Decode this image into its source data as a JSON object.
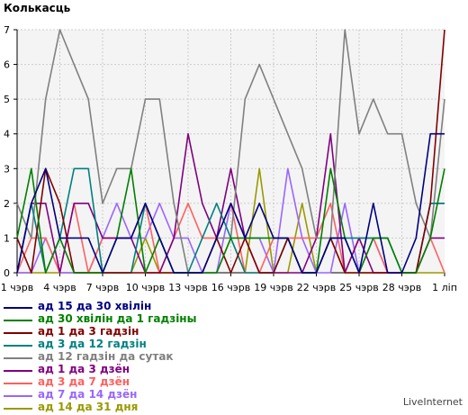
{
  "brand": "LiveInternet",
  "chart_data": {
    "type": "line",
    "title": "Колькасць",
    "xlabel": "",
    "ylabel": "",
    "ylim": [
      0,
      7
    ],
    "yticks": [
      "0",
      "1",
      "2",
      "3",
      "4",
      "5",
      "6",
      "7"
    ],
    "grid": true,
    "legend_position": "bottom",
    "x_tick_labels": [
      "1 чэрв",
      "4 чэрв",
      "7 чэрв",
      "10 чэрв",
      "13 чэрв",
      "16 чэрв",
      "19 чэрв",
      "22 чэрв",
      "25 чэрв",
      "28 чэрв",
      "1 ліп"
    ],
    "x_tick_positions": [
      0,
      3,
      6,
      9,
      12,
      15,
      18,
      21,
      24,
      27,
      30
    ],
    "x_count": 31,
    "series": [
      {
        "name": "ад 15 да 30 хвілін",
        "color": "#000080",
        "values": [
          0,
          2,
          3,
          1,
          1,
          1,
          0,
          1,
          1,
          2,
          1,
          0,
          0,
          0,
          1,
          2,
          1,
          2,
          1,
          1,
          0,
          0,
          1,
          1,
          0,
          2,
          0,
          0,
          1,
          4,
          4
        ]
      },
      {
        "name": "ад 30 хвілін да 1 гадзіны",
        "color": "#008000",
        "values": [
          1,
          3,
          0,
          1,
          0,
          0,
          0,
          1,
          3,
          0,
          1,
          0,
          0,
          0,
          0,
          1,
          1,
          1,
          1,
          1,
          0,
          0,
          3,
          1,
          0,
          1,
          1,
          0,
          0,
          1,
          3
        ]
      },
      {
        "name": "ад 1 да 3 гадзін",
        "color": "#800000",
        "values": [
          1,
          0,
          3,
          2,
          0,
          0,
          0,
          0,
          0,
          0,
          0,
          0,
          0,
          0,
          1,
          0,
          1,
          0,
          0,
          1,
          0,
          0,
          1,
          0,
          0,
          0,
          0,
          0,
          0,
          2,
          7
        ]
      },
      {
        "name": "ад 3 да 12 гадзін",
        "color": "#008080",
        "values": [
          0,
          2,
          0,
          1,
          3,
          3,
          0,
          0,
          0,
          2,
          1,
          0,
          0,
          1,
          2,
          1,
          0,
          0,
          0,
          1,
          0,
          0,
          1,
          1,
          1,
          1,
          1,
          0,
          0,
          2,
          2
        ]
      },
      {
        "name": "ад 12 гадзін да сутак",
        "color": "#808080",
        "values": [
          2,
          1,
          5,
          7,
          6,
          5,
          2,
          3,
          3,
          5,
          5,
          2,
          0,
          0,
          1,
          1,
          5,
          6,
          5,
          4,
          3,
          1,
          1,
          7,
          4,
          5,
          4,
          4,
          2,
          1,
          5
        ]
      },
      {
        "name": "ад 1 да 3 дзён",
        "color": "#800080",
        "values": [
          0,
          2,
          2,
          0,
          2,
          2,
          1,
          1,
          1,
          0,
          0,
          1,
          4,
          2,
          1,
          3,
          1,
          0,
          0,
          0,
          0,
          1,
          4,
          0,
          1,
          0,
          0,
          0,
          0,
          1,
          1
        ]
      },
      {
        "name": "ад 3 да 7 дзён",
        "color": "#FF6060",
        "values": [
          0,
          1,
          1,
          0,
          2,
          0,
          1,
          1,
          1,
          2,
          0,
          1,
          2,
          1,
          1,
          2,
          0,
          0,
          1,
          1,
          1,
          1,
          2,
          0,
          1,
          1,
          0,
          0,
          0,
          1,
          0
        ]
      },
      {
        "name": "ад 7 да 14 дзён",
        "color": "#9966FF",
        "values": [
          0,
          0,
          1,
          0,
          0,
          0,
          1,
          2,
          1,
          1,
          2,
          1,
          1,
          0,
          0,
          2,
          1,
          1,
          0,
          3,
          1,
          0,
          0,
          2,
          0,
          1,
          0,
          0,
          0,
          2,
          2
        ]
      },
      {
        "name": "ад 14 да 31 дня",
        "color": "#999900",
        "values": [
          0,
          0,
          0,
          0,
          0,
          0,
          0,
          0,
          0,
          1,
          0,
          0,
          0,
          0,
          0,
          1,
          0,
          3,
          0,
          0,
          2,
          0,
          1,
          0,
          0,
          0,
          0,
          0,
          0,
          0,
          0
        ]
      }
    ]
  }
}
